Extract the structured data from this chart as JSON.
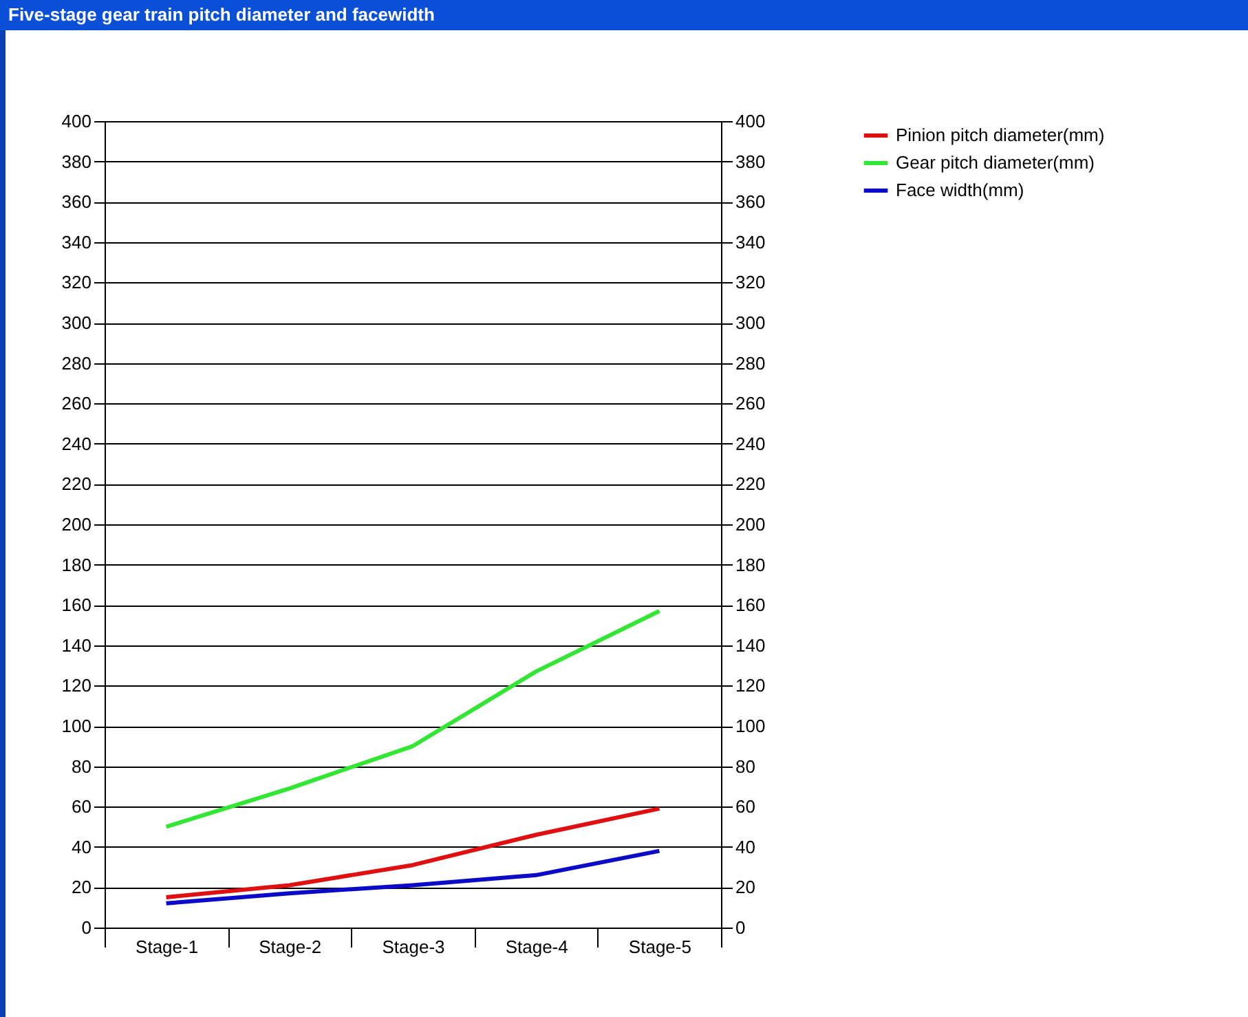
{
  "chart_data": {
    "type": "line",
    "title": "Five-stage gear train pitch diameter and facewidth",
    "categories": [
      "Stage-1",
      "Stage-2",
      "Stage-3",
      "Stage-4",
      "Stage-5"
    ],
    "series": [
      {
        "name": "Pinion pitch diameter(mm)",
        "color": "#e01010",
        "values": [
          15,
          21,
          31,
          46,
          59
        ]
      },
      {
        "name": "Gear pitch diameter(mm)",
        "color": "#33e633",
        "values": [
          50,
          69,
          90,
          127,
          157
        ]
      },
      {
        "name": "Face width(mm)",
        "color": "#0a0ac8",
        "values": [
          12,
          17,
          21,
          26,
          38
        ]
      }
    ],
    "ylim": [
      0,
      400
    ],
    "yticks": [
      0,
      20,
      40,
      60,
      80,
      100,
      120,
      140,
      160,
      180,
      200,
      220,
      240,
      260,
      280,
      300,
      320,
      340,
      360,
      380,
      400
    ],
    "y2lim": [
      0,
      400
    ],
    "y2ticks": [
      0,
      20,
      40,
      60,
      80,
      100,
      120,
      140,
      160,
      180,
      200,
      220,
      240,
      260,
      280,
      300,
      320,
      340,
      360,
      380,
      400
    ],
    "grid": "y",
    "legend": "right",
    "marker": "none",
    "line_style": "solid"
  }
}
